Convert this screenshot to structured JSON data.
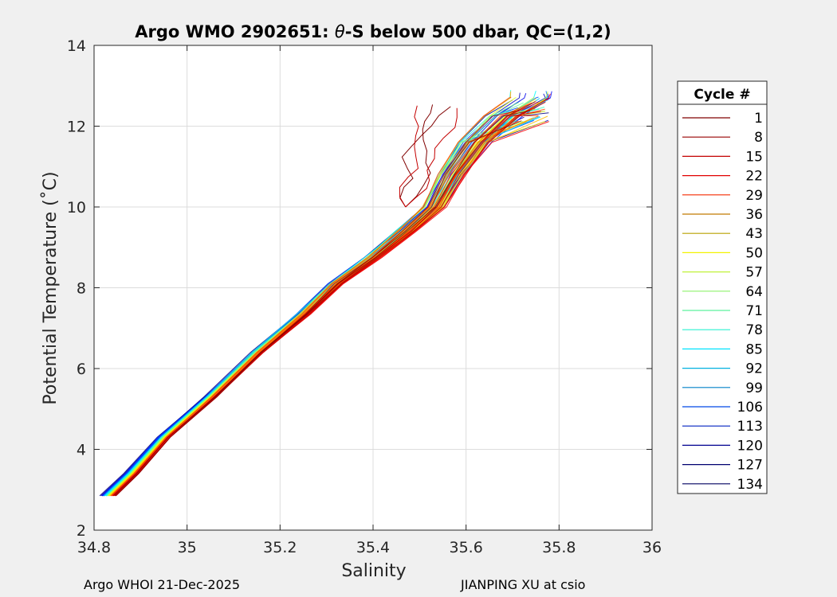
{
  "chart_data": {
    "type": "line",
    "title_prefix": "Argo WMO 2902651: ",
    "title_theta": "θ",
    "title_suffix": "-S below 500 dbar,  QC=(1,2)",
    "xlabel": "Salinity",
    "ylabel": "Potential Temperature (˚C)",
    "xlim": [
      34.8,
      36
    ],
    "ylim": [
      2,
      14
    ],
    "xticks": [
      34.8,
      35,
      35.2,
      35.4,
      35.6,
      35.8,
      36
    ],
    "xtick_labels": [
      "34.8",
      "35",
      "35.2",
      "35.4",
      "35.6",
      "35.8",
      "36"
    ],
    "yticks": [
      2,
      4,
      6,
      8,
      10,
      12,
      14
    ],
    "ytick_labels": [
      "2",
      "4",
      "6",
      "8",
      "10",
      "12",
      "14"
    ],
    "grid": true,
    "colormap": "jet",
    "legend": {
      "title": "Cycle #",
      "placement": "outside-right",
      "entries": [
        "1",
        "8",
        "15",
        "22",
        "29",
        "36",
        "43",
        "50",
        "57",
        "64",
        "71",
        "78",
        "85",
        "92",
        "99",
        "106",
        "113",
        "120",
        "127",
        "134"
      ],
      "colors": [
        "#800000",
        "#980000",
        "#c40000",
        "#e10000",
        "#f52a00",
        "#c07a00",
        "#b8a000",
        "#f2f200",
        "#c0f23a",
        "#8ef26c",
        "#5cf29e",
        "#2af2d0",
        "#00e4ff",
        "#00b0e0",
        "#0080c8",
        "#0048e8",
        "#0020c0",
        "#000090",
        "#000070",
        "#000060"
      ]
    },
    "series_meta": {
      "count": 134,
      "cycle_range": [
        1,
        134
      ]
    },
    "profile_path": [
      [
        34.83,
        2.85
      ],
      [
        34.88,
        3.4
      ],
      [
        34.95,
        4.3
      ],
      [
        35.05,
        5.3
      ],
      [
        35.15,
        6.4
      ],
      [
        35.25,
        7.35
      ],
      [
        35.32,
        8.1
      ],
      [
        35.4,
        8.75
      ],
      [
        35.47,
        9.4
      ],
      [
        35.53,
        10.0
      ],
      [
        35.57,
        10.8
      ],
      [
        35.62,
        11.6
      ],
      [
        35.68,
        12.25
      ],
      [
        35.74,
        12.7
      ]
    ]
  },
  "footer": {
    "left": "Argo WHOI 21-Dec-2025",
    "right": "JIANPING XU at csio"
  }
}
